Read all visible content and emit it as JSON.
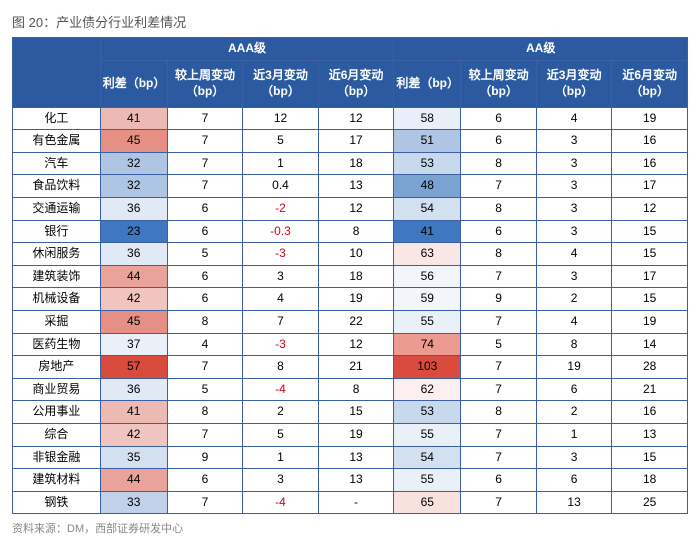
{
  "title": "图 20：产业债分行业利差情况",
  "source": "资料来源：DM，西部证券研发中心",
  "groups": [
    "AAA级",
    "AA级"
  ],
  "sub_headers": [
    "利差（bp）",
    "较上周变动（bp）",
    "近3月变动（bp）",
    "近6月变动（bp）"
  ],
  "header_bg": "#2c5aa0",
  "header_fg": "#ffffff",
  "border_color": "#3a5fa5",
  "neg_color": "#d0021b",
  "fontsize_body": 12,
  "fontsize_title": 13,
  "heat_scale": {
    "comment": "first numeric column of each group is heat-shaded; ramp from light blue (low) → white → light red → dark red (high)",
    "colors": {
      "dark_blue": "#3f77c0",
      "mid_blue": "#9ab8de",
      "light_blue": "#d3e0f0",
      "white": "#ffffff",
      "light_red": "#f8d9d6",
      "mid_red": "#f0a8a0",
      "dark_red": "#e06050"
    }
  },
  "rows": [
    {
      "label": "化工",
      "aaa": {
        "spread": 41,
        "w": 7,
        "m3": 12,
        "m6": 12,
        "heat": "#ecb9b3"
      },
      "aa": {
        "spread": 58,
        "w": 6,
        "m3": 4,
        "m6": 19,
        "heat": "#e9eff8"
      }
    },
    {
      "label": "有色金属",
      "aaa": {
        "spread": 45,
        "w": 7,
        "m3": 5,
        "m6": 17,
        "heat": "#e58f85"
      },
      "aa": {
        "spread": 51,
        "w": 6,
        "m3": 3,
        "m6": 16,
        "heat": "#aec6e4"
      }
    },
    {
      "label": "汽车",
      "aaa": {
        "spread": 32,
        "w": 7,
        "m3": 1,
        "m6": 18,
        "heat": "#aec6e4"
      },
      "aa": {
        "spread": 53,
        "w": 8,
        "m3": 3,
        "m6": 16,
        "heat": "#c9d9ed"
      }
    },
    {
      "label": "食品饮料",
      "aaa": {
        "spread": 32,
        "w": 7,
        "m3": 0.4,
        "m6": 13,
        "heat": "#aec6e4"
      },
      "aa": {
        "spread": 48,
        "w": 7,
        "m3": 3,
        "m6": 17,
        "heat": "#7ba3d2"
      }
    },
    {
      "label": "交通运输",
      "aaa": {
        "spread": 36,
        "w": 6,
        "m3": -2,
        "m6": 12,
        "heat": "#e0e9f4"
      },
      "aa": {
        "spread": 54,
        "w": 8,
        "m3": 3,
        "m6": 12,
        "heat": "#d3e0f0"
      }
    },
    {
      "label": "银行",
      "aaa": {
        "spread": 23,
        "w": 6,
        "m3": -0.3,
        "m6": 8,
        "heat": "#3f77c0"
      },
      "aa": {
        "spread": 41,
        "w": 6,
        "m3": 3,
        "m6": 15,
        "heat": "#3f77c0"
      }
    },
    {
      "label": "休闲服务",
      "aaa": {
        "spread": 36,
        "w": 5,
        "m3": -3,
        "m6": 10,
        "heat": "#e0e9f4"
      },
      "aa": {
        "spread": 63,
        "w": 8,
        "m3": 4,
        "m6": 15,
        "heat": "#f9e7e5"
      }
    },
    {
      "label": "建筑装饰",
      "aaa": {
        "spread": 44,
        "w": 6,
        "m3": 3,
        "m6": 18,
        "heat": "#e9a39b"
      },
      "aa": {
        "spread": 56,
        "w": 7,
        "m3": 3,
        "m6": 17,
        "heat": "#f2f6fb"
      }
    },
    {
      "label": "机械设备",
      "aaa": {
        "spread": 42,
        "w": 6,
        "m3": 4,
        "m6": 19,
        "heat": "#f0c4bf"
      },
      "aa": {
        "spread": 59,
        "w": 9,
        "m3": 2,
        "m6": 15,
        "heat": "#f2f6fb"
      }
    },
    {
      "label": "采掘",
      "aaa": {
        "spread": 45,
        "w": 8,
        "m3": 7,
        "m6": 22,
        "heat": "#e58f85"
      },
      "aa": {
        "spread": 55,
        "w": 7,
        "m3": 4,
        "m6": 19,
        "heat": "#eaf0f8"
      }
    },
    {
      "label": "医药生物",
      "aaa": {
        "spread": 37,
        "w": 4,
        "m3": -3,
        "m6": 12,
        "heat": "#eaf0f8"
      },
      "aa": {
        "spread": 74,
        "w": 5,
        "m3": 8,
        "m6": 14,
        "heat": "#ec9b91"
      }
    },
    {
      "label": "房地产",
      "aaa": {
        "spread": 57,
        "w": 7,
        "m3": 8,
        "m6": 21,
        "heat": "#d94b3c"
      },
      "aa": {
        "spread": 103,
        "w": 7,
        "m3": 19,
        "m6": 28,
        "heat": "#d94b3c"
      }
    },
    {
      "label": "商业贸易",
      "aaa": {
        "spread": 36,
        "w": 5,
        "m3": -4,
        "m6": 8,
        "heat": "#e0e9f4"
      },
      "aa": {
        "spread": 62,
        "w": 7,
        "m3": 6,
        "m6": 21,
        "heat": "#fbf0ef"
      }
    },
    {
      "label": "公用事业",
      "aaa": {
        "spread": 41,
        "w": 8,
        "m3": 2,
        "m6": 15,
        "heat": "#ecb9b3"
      },
      "aa": {
        "spread": 53,
        "w": 8,
        "m3": 2,
        "m6": 16,
        "heat": "#c9d9ed"
      }
    },
    {
      "label": "综合",
      "aaa": {
        "spread": 42,
        "w": 7,
        "m3": 5,
        "m6": 19,
        "heat": "#f0c4bf"
      },
      "aa": {
        "spread": 55,
        "w": 7,
        "m3": 1,
        "m6": 13,
        "heat": "#eaf0f8"
      }
    },
    {
      "label": "非银金融",
      "aaa": {
        "spread": 35,
        "w": 9,
        "m3": 1,
        "m6": 13,
        "heat": "#d3e0f0"
      },
      "aa": {
        "spread": 54,
        "w": 7,
        "m3": 3,
        "m6": 15,
        "heat": "#d3e0f0"
      }
    },
    {
      "label": "建筑材料",
      "aaa": {
        "spread": 44,
        "w": 6,
        "m3": 3,
        "m6": 13,
        "heat": "#e9a39b"
      },
      "aa": {
        "spread": 55,
        "w": 6,
        "m3": 6,
        "m6": 18,
        "heat": "#eaf0f8"
      }
    },
    {
      "label": "钢铁",
      "aaa": {
        "spread": 33,
        "w": 7,
        "m3": -4,
        "m6": "-",
        "heat": "#c0d2e9"
      },
      "aa": {
        "spread": 65,
        "w": 7,
        "m3": 13,
        "m6": 25,
        "heat": "#f9e1de"
      }
    }
  ]
}
